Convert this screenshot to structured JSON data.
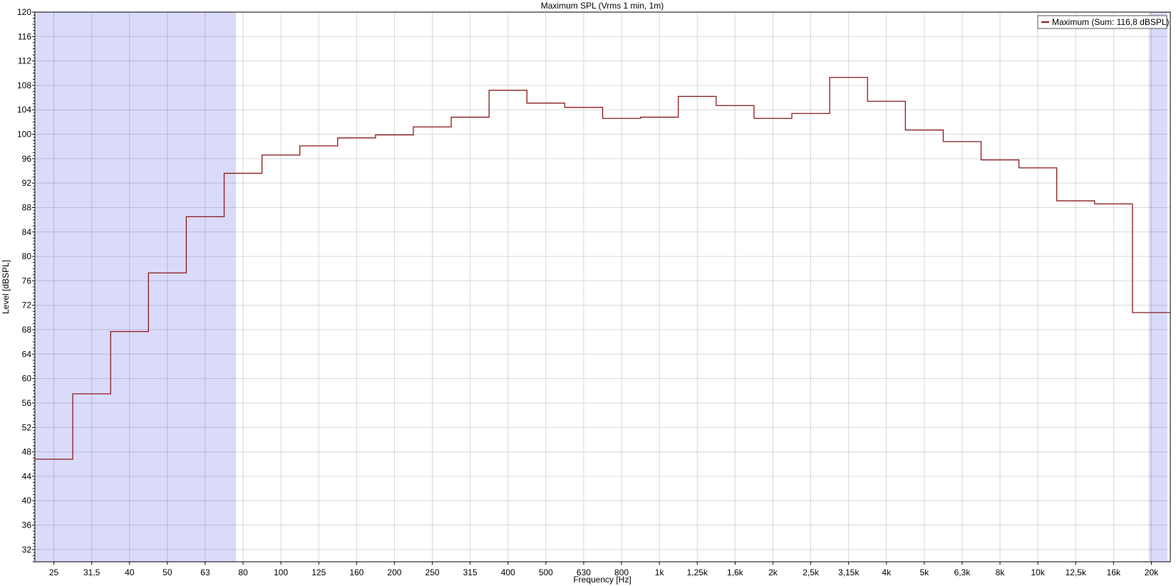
{
  "chart_data": {
    "type": "line",
    "step": true,
    "title": "Maximum SPL (Vrms 1 min, 1m)",
    "xlabel": "Frequency [Hz]",
    "ylabel": "Level [dBSPL]",
    "x_scale": "log (1/3 octave bands)",
    "ylim": [
      30,
      120
    ],
    "y_ticks": [
      32,
      36,
      40,
      44,
      48,
      52,
      56,
      60,
      64,
      68,
      72,
      76,
      80,
      84,
      88,
      92,
      96,
      100,
      104,
      108,
      112,
      116,
      120
    ],
    "categories": [
      "25",
      "31,5",
      "40",
      "50",
      "63",
      "80",
      "100",
      "125",
      "160",
      "200",
      "250",
      "315",
      "400",
      "500",
      "630",
      "800",
      "1k",
      "1,25k",
      "1,6k",
      "2k",
      "2,5k",
      "3,15k",
      "4k",
      "5k",
      "6,3k",
      "8k",
      "10k",
      "12,5k",
      "16k",
      "20k"
    ],
    "grid": true,
    "legend_position": "top-right",
    "series": [
      {
        "name": "Maximum (Sum: 116,8 dBSPL)",
        "color": "#8b1a1a",
        "values": [
          46.8,
          57.5,
          67.7,
          77.3,
          86.5,
          93.6,
          96.6,
          98.1,
          99.4,
          99.9,
          101.2,
          102.8,
          107.2,
          105.1,
          104.4,
          102.6,
          102.8,
          106.2,
          104.7,
          102.6,
          103.4,
          109.3,
          105.4,
          100.7,
          98.8,
          95.8,
          94.5,
          89.1,
          88.6,
          70.8
        ]
      }
    ],
    "shaded_regions_hz": [
      [
        22.4,
        76
      ],
      [
        20000,
        22400
      ]
    ],
    "shade_color": "#dadafa"
  }
}
